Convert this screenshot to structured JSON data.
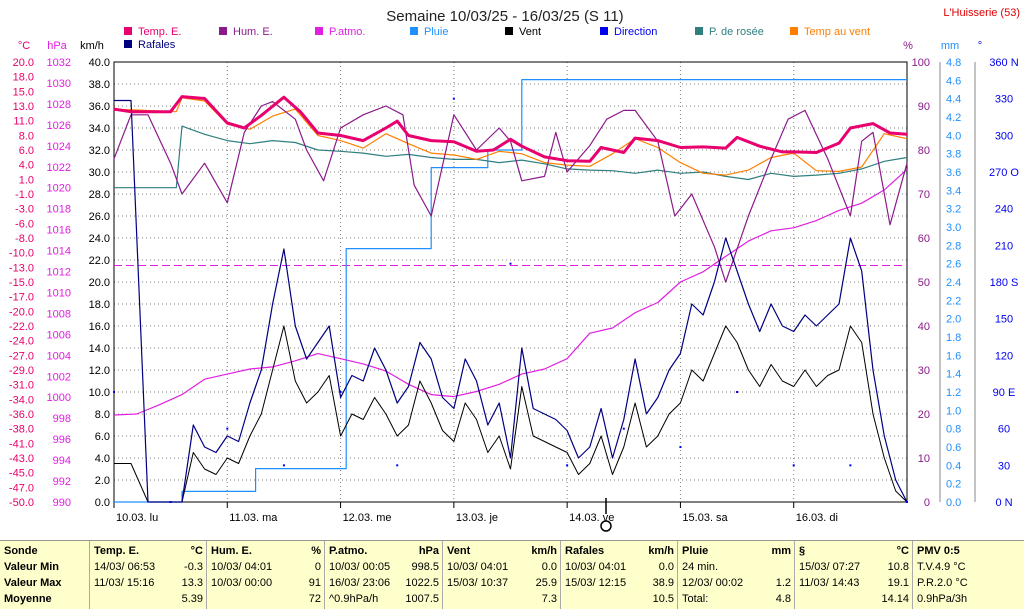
{
  "title": "Semaine 10/03/25 - 16/03/25 (S 11)",
  "station": "L'Huisserie (53)",
  "colors": {
    "temp": "#e8006e",
    "hum": "#8b1a8b",
    "patmo": "#e020e0",
    "pluie": "#1e90ff",
    "vent": "#000000",
    "direction": "#0000ee",
    "rosee": "#2f7f7f",
    "tempvent": "#ff8000",
    "rafales": "#000080",
    "grid": "#7f7f7f",
    "bg": "#ffffff",
    "stats_bg": "#ffffcc"
  },
  "legend": [
    {
      "label": "Temp. E.",
      "color": "#e8006e"
    },
    {
      "label": "Hum. E.",
      "color": "#8b1a8b"
    },
    {
      "label": "P.atmo.",
      "color": "#e020e0"
    },
    {
      "label": "Pluie",
      "color": "#1e90ff"
    },
    {
      "label": "Vent",
      "color": "#000000"
    },
    {
      "label": "Direction",
      "color": "#0000ee"
    },
    {
      "label": "P. de rosée",
      "color": "#2f7f7f"
    },
    {
      "label": "Temp au vent",
      "color": "#ff8000"
    },
    {
      "label": "Rafales",
      "color": "#000080"
    }
  ],
  "axes": {
    "temp": {
      "unit": "°C",
      "labels": [
        "20.0",
        "18.0",
        "15.0",
        "13.0",
        "11.0",
        "8.0",
        "6.0",
        "4.0",
        "1.0",
        "-1.0",
        "-3.0",
        "-6.0",
        "-8.0",
        "-10.0",
        "-13.0",
        "-15.0",
        "-17.0",
        "-20.0",
        "-22.0",
        "-24.0",
        "-27.0",
        "-29.0",
        "-31.0",
        "-34.0",
        "-36.0",
        "-38.0",
        "-41.0",
        "-43.0",
        "-45.0",
        "-47.0",
        "-50.0"
      ]
    },
    "pres": {
      "unit": "hPa",
      "labels": [
        "1032",
        "1030",
        "1028",
        "1026",
        "1024",
        "1022",
        "1020",
        "1018",
        "1016",
        "1014",
        "1012",
        "1010",
        "1008",
        "1006",
        "1004",
        "1002",
        "1000",
        "998",
        "996",
        "994",
        "992",
        "990"
      ]
    },
    "wind": {
      "unit": "km/h",
      "labels": [
        "40.0",
        "38.0",
        "36.0",
        "34.0",
        "32.0",
        "30.0",
        "28.0",
        "26.0",
        "24.0",
        "22.0",
        "20.0",
        "18.0",
        "16.0",
        "14.0",
        "12.0",
        "10.0",
        "8.0",
        "6.0",
        "4.0",
        "2.0",
        "0.0"
      ]
    },
    "hum": {
      "unit": "%",
      "labels": [
        "100",
        "90",
        "80",
        "70",
        "60",
        "50",
        "40",
        "30",
        "20",
        "10",
        "0"
      ]
    },
    "rain": {
      "unit": "mm",
      "labels": [
        "4.8",
        "4.6",
        "4.4",
        "4.2",
        "4.0",
        "3.8",
        "3.6",
        "3.4",
        "3.2",
        "3.0",
        "2.8",
        "2.6",
        "2.4",
        "2.2",
        "2.0",
        "1.8",
        "1.6",
        "1.4",
        "1.2",
        "1.0",
        "0.8",
        "0.6",
        "0.4",
        "0.2",
        "0.0"
      ]
    },
    "dir": {
      "unit": "°",
      "labels": [
        "360 N",
        "330",
        "300",
        "270 O",
        "240",
        "210",
        "180 S",
        "150",
        "120",
        "90 E",
        "60",
        "30",
        "0 N"
      ]
    },
    "days": [
      "10.03. lu",
      "11.03. ma",
      "12.03. me",
      "13.03. je",
      "14.03. ve",
      "15.03. sa",
      "16.03. di"
    ]
  },
  "chart_data": {
    "type": "line",
    "x_range": [
      "10/03/25 00:00",
      "16/03/25 24:00"
    ],
    "x_unit": "jour",
    "days": [
      "10.03. lu",
      "11.03. ma",
      "12.03. me",
      "13.03. je",
      "14.03. ve",
      "15.03. sa",
      "16.03. di"
    ],
    "reference_line": {
      "axis": "km/h",
      "value": 21.5,
      "style": "dashed"
    },
    "series": [
      {
        "name": "Temp. E.",
        "unit": "°C",
        "x": [
          0,
          0.15,
          0.3,
          0.5,
          0.6,
          0.8,
          1.0,
          1.15,
          1.3,
          1.5,
          1.65,
          1.8,
          2.0,
          2.2,
          2.4,
          2.5,
          2.6,
          2.8,
          3.0,
          3.2,
          3.35,
          3.5,
          3.6,
          3.8,
          4.0,
          4.2,
          4.3,
          4.5,
          4.6,
          4.8,
          5.0,
          5.2,
          5.4,
          5.5,
          5.7,
          5.9,
          6.0,
          6.2,
          6.4,
          6.5,
          6.7,
          6.85,
          7.0
        ],
        "values": [
          12.5,
          12.1,
          12.1,
          12.1,
          14.5,
          14.2,
          10.3,
          9.5,
          11.5,
          14.4,
          12.0,
          8.7,
          8.3,
          7.5,
          9.5,
          10.6,
          8.3,
          7.5,
          7.3,
          5.8,
          6.0,
          7.7,
          6.6,
          4.9,
          4.3,
          4.2,
          6.4,
          5.6,
          7.9,
          7.5,
          6.4,
          6.5,
          6.3,
          8.0,
          6.6,
          5.7,
          5.7,
          5.6,
          7.1,
          9.5,
          10.2,
          8.7,
          8.5
        ]
      },
      {
        "name": "Hum. E.",
        "unit": "%",
        "x": [
          0,
          0.15,
          0.3,
          0.5,
          0.6,
          0.8,
          1.0,
          1.15,
          1.3,
          1.4,
          1.6,
          1.7,
          1.85,
          2.0,
          2.2,
          2.4,
          2.55,
          2.65,
          2.8,
          3.0,
          3.2,
          3.4,
          3.5,
          3.6,
          3.8,
          3.9,
          4.0,
          4.2,
          4.35,
          4.5,
          4.6,
          4.8,
          4.95,
          5.1,
          5.3,
          5.4,
          5.6,
          5.8,
          5.95,
          6.1,
          6.3,
          6.5,
          6.6,
          6.7,
          6.85,
          7.0
        ],
        "values": [
          78,
          88,
          88,
          77,
          70,
          77,
          68,
          84,
          90,
          91,
          87,
          80,
          73,
          85,
          88,
          90,
          88,
          72,
          65,
          88,
          80,
          85,
          82,
          73,
          74,
          84,
          75,
          81,
          87,
          89,
          89,
          82,
          65,
          70,
          58,
          50,
          65,
          78,
          87,
          89,
          78,
          65,
          82,
          84,
          63,
          77
        ]
      },
      {
        "name": "P.atmo.",
        "unit": "hPa",
        "x": [
          0,
          0.2,
          0.4,
          0.6,
          0.8,
          1.0,
          1.2,
          1.4,
          1.6,
          1.8,
          2.0,
          2.2,
          2.4,
          2.6,
          2.8,
          3.0,
          3.2,
          3.4,
          3.6,
          3.8,
          4.0,
          4.2,
          4.4,
          4.6,
          4.8,
          5.0,
          5.2,
          5.4,
          5.6,
          5.8,
          6.0,
          6.2,
          6.4,
          6.6,
          6.8,
          7.0
        ],
        "values": [
          998.5,
          998.6,
          999.5,
          1000.5,
          1002.0,
          1002.5,
          1003.0,
          1003.2,
          1003.8,
          1004.5,
          1004.0,
          1003.5,
          1002.8,
          1001.5,
          1000.5,
          1000.3,
          1000.8,
          1001.5,
          1002.5,
          1003.0,
          1004.0,
          1006.5,
          1007.0,
          1008.5,
          1009.5,
          1011.5,
          1012.5,
          1014.0,
          1015.5,
          1016.5,
          1016.8,
          1017.5,
          1018.5,
          1019.2,
          1020.5,
          1022.5
        ]
      },
      {
        "name": "Pluie",
        "unit": "mm",
        "x": [
          0,
          0.55,
          0.6,
          1.15,
          1.25,
          1.8,
          2.0,
          2.05,
          2.7,
          2.8,
          3.2,
          3.3,
          3.5,
          3.6,
          5.0,
          7.0
        ],
        "values": [
          0,
          0,
          0.12,
          0.12,
          0.38,
          0.38,
          0.38,
          2.88,
          2.88,
          3.8,
          3.8,
          4.0,
          4.0,
          4.8,
          4.8,
          4.8
        ]
      },
      {
        "name": "Vent",
        "unit": "km/h",
        "x": [
          0,
          0.15,
          0.3,
          0.5,
          0.6,
          0.7,
          0.8,
          0.9,
          1.0,
          1.1,
          1.2,
          1.3,
          1.4,
          1.5,
          1.6,
          1.7,
          1.8,
          1.9,
          2.0,
          2.1,
          2.2,
          2.3,
          2.4,
          2.5,
          2.6,
          2.7,
          2.8,
          2.9,
          3.0,
          3.1,
          3.2,
          3.3,
          3.4,
          3.5,
          3.6,
          3.7,
          3.8,
          3.9,
          4.0,
          4.1,
          4.2,
          4.3,
          4.4,
          4.5,
          4.6,
          4.7,
          4.8,
          4.9,
          5.0,
          5.1,
          5.2,
          5.3,
          5.4,
          5.5,
          5.6,
          5.7,
          5.8,
          5.9,
          6.0,
          6.1,
          6.2,
          6.3,
          6.4,
          6.5,
          6.6,
          6.7,
          6.8,
          6.9,
          7.0
        ],
        "values": [
          3.5,
          3.5,
          0,
          0,
          0,
          4.5,
          3.0,
          2.5,
          4.0,
          3.5,
          6.0,
          8.0,
          12.0,
          16.0,
          11.0,
          9.0,
          10.0,
          11.5,
          6.0,
          8.0,
          7.5,
          9.5,
          8.0,
          6.0,
          7.0,
          11.0,
          9.0,
          6.5,
          5.5,
          9.0,
          7.5,
          4.5,
          6.0,
          3.0,
          10.5,
          6.0,
          5.5,
          5.0,
          4.5,
          2.5,
          3.5,
          6.0,
          2.5,
          5.0,
          9.0,
          5.0,
          6.0,
          8.0,
          9.0,
          12.0,
          11.0,
          13.5,
          16.0,
          14.5,
          12.0,
          10.5,
          12.5,
          11.0,
          10.5,
          12.0,
          10.5,
          11.5,
          12.0,
          16.0,
          14.5,
          8.0,
          4.0,
          1.0,
          0.0
        ]
      },
      {
        "name": "Direction",
        "unit": "°",
        "x": [
          0,
          0.5,
          1.0,
          1.5,
          2.0,
          2.5,
          3.0,
          3.5,
          4.0,
          4.5,
          5.0,
          5.5,
          6.0,
          6.5,
          7.0
        ],
        "values": [
          90,
          0,
          60,
          30,
          90,
          30,
          330,
          195,
          30,
          60,
          45,
          90,
          30,
          30,
          0
        ]
      },
      {
        "name": "P. de rosée",
        "unit": "°C",
        "x": [
          0,
          0.55,
          0.6,
          0.8,
          1.0,
          1.2,
          1.4,
          1.6,
          1.8,
          2.0,
          2.2,
          2.4,
          2.6,
          2.8,
          3.0,
          3.2,
          3.4,
          3.6,
          3.8,
          4.0,
          4.2,
          4.4,
          4.6,
          4.8,
          5.0,
          5.2,
          5.4,
          5.6,
          5.8,
          6.0,
          6.2,
          6.4,
          6.6,
          6.8,
          7.0
        ],
        "values": [
          0,
          0,
          9.8,
          8.5,
          7.5,
          7.0,
          7.5,
          7.2,
          6.0,
          5.8,
          5.5,
          5.0,
          5.3,
          4.8,
          4.5,
          4.5,
          4.0,
          4.4,
          3.8,
          3.0,
          2.8,
          2.7,
          2.3,
          2.8,
          2.3,
          2.5,
          1.8,
          1.3,
          2.3,
          1.8,
          2.0,
          2.3,
          3.0,
          4.2,
          4.8
        ]
      },
      {
        "name": "Temp au vent",
        "unit": "°C",
        "x": [
          0,
          0.55,
          0.6,
          0.8,
          1.0,
          1.2,
          1.4,
          1.6,
          1.8,
          2.0,
          2.2,
          2.4,
          2.6,
          2.8,
          3.0,
          3.2,
          3.4,
          3.6,
          3.8,
          4.0,
          4.2,
          4.4,
          4.6,
          4.8,
          5.0,
          5.2,
          5.4,
          5.6,
          5.8,
          6.0,
          6.2,
          6.4,
          6.6,
          6.8,
          7.0
        ],
        "values": [
          12.5,
          12.1,
          14.3,
          13.8,
          10.1,
          9.3,
          11.4,
          12.5,
          8.3,
          7.5,
          6.3,
          8.6,
          7.0,
          5.5,
          5.2,
          4.5,
          5.8,
          5.4,
          4.0,
          3.6,
          3.4,
          5.4,
          7.8,
          6.4,
          4.0,
          2.3,
          2.0,
          2.8,
          4.8,
          5.5,
          2.7,
          2.6,
          3.3,
          8.6,
          7.8
        ]
      },
      {
        "name": "Rafales",
        "unit": "km/h",
        "x": [
          0,
          0.15,
          0.3,
          0.5,
          0.6,
          0.7,
          0.8,
          0.9,
          1.0,
          1.1,
          1.2,
          1.3,
          1.4,
          1.5,
          1.6,
          1.7,
          1.8,
          1.9,
          2.0,
          2.1,
          2.2,
          2.3,
          2.4,
          2.5,
          2.6,
          2.7,
          2.8,
          2.9,
          3.0,
          3.1,
          3.2,
          3.3,
          3.4,
          3.5,
          3.6,
          3.7,
          3.8,
          3.9,
          4.0,
          4.1,
          4.2,
          4.3,
          4.4,
          4.5,
          4.6,
          4.7,
          4.8,
          4.9,
          5.0,
          5.1,
          5.2,
          5.3,
          5.4,
          5.5,
          5.6,
          5.7,
          5.8,
          5.9,
          6.0,
          6.1,
          6.2,
          6.3,
          6.4,
          6.5,
          6.6,
          6.7,
          6.8,
          6.9,
          7.0
        ],
        "values": [
          36.5,
          36.5,
          0,
          0,
          0,
          7.0,
          5.0,
          4.5,
          6.0,
          5.5,
          9.0,
          12.0,
          18.0,
          23.0,
          16.0,
          13.0,
          14.5,
          16.0,
          9.5,
          11.5,
          11.0,
          14.0,
          12.0,
          9.0,
          10.5,
          14.5,
          13.0,
          9.5,
          8.5,
          13.0,
          11.0,
          7.0,
          9.0,
          4.0,
          14.0,
          8.5,
          8.0,
          7.5,
          6.5,
          4.0,
          5.0,
          8.5,
          4.0,
          7.5,
          13.0,
          8.0,
          9.5,
          12.0,
          13.5,
          18.0,
          17.0,
          20.0,
          24.0,
          21.0,
          18.0,
          15.5,
          18.0,
          16.0,
          15.5,
          17.0,
          16.0,
          17.0,
          18.0,
          24.0,
          21.0,
          12.0,
          6.0,
          2.0,
          0.0
        ]
      }
    ]
  },
  "stats": {
    "labels": {
      "header": "Sonde",
      "min": "Valeur Min",
      "max": "Valeur Max",
      "avg": "Moyenne"
    },
    "cols": [
      {
        "title": "Temp. E.",
        "unit": "°C",
        "min_date": "14/03/ 06:53",
        "min_val": "-0.3",
        "max_date": "11/03/ 15:16",
        "max_val": "13.3",
        "avg_date": "",
        "avg_val": "5.39"
      },
      {
        "title": "Hum. E.",
        "unit": "%",
        "min_date": "10/03/ 04:01",
        "min_val": "0",
        "max_date": "10/03/ 00:00",
        "max_val": "91",
        "avg_date": "",
        "avg_val": "72"
      },
      {
        "title": "P.atmo.",
        "unit": "hPa",
        "min_date": "10/03/ 00:05",
        "min_val": "998.5",
        "max_date": "16/03/ 23:06",
        "max_val": "1022.5",
        "avg_date": "^0.9hPa/h",
        "avg_val": "1007.5"
      },
      {
        "title": "Vent",
        "unit": "km/h",
        "min_date": "10/03/ 04:01",
        "min_val": "0.0",
        "max_date": "15/03/ 10:37",
        "max_val": "25.9",
        "avg_date": "",
        "avg_val": "7.3"
      },
      {
        "title": "Rafales",
        "unit": "km/h",
        "min_date": "10/03/ 04:01",
        "min_val": "0.0",
        "max_date": "15/03/ 12:15",
        "max_val": "38.9",
        "avg_date": "",
        "avg_val": "10.5"
      },
      {
        "title": "Pluie",
        "unit": "mm",
        "min_date": "24 min.",
        "min_val": "",
        "max_date": "12/03/ 00:02",
        "max_val": "1.2",
        "avg_date": "Total:",
        "avg_val": "4.8"
      },
      {
        "title": "§",
        "unit": "°C",
        "min_date": "15/03/ 07:27",
        "min_val": "10.8",
        "max_date": "11/03/ 14:43",
        "max_val": "19.1",
        "avg_date": "",
        "avg_val": "14.14"
      },
      {
        "title": "PMV 0:5",
        "unit": "",
        "min_date": "T.V.4.9 °C",
        "min_val": "",
        "max_date": "P.R.2.0 °C",
        "max_val": "",
        "avg_date": "0.9hPa/3h",
        "avg_val": ""
      }
    ]
  }
}
